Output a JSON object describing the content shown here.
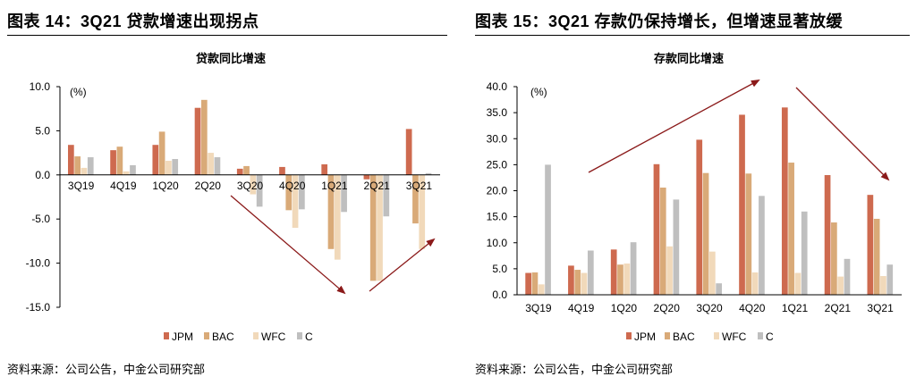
{
  "colors": {
    "JPM": "#CE6A4F",
    "BAC": "#D9AA78",
    "WFC": "#F1D9BA",
    "C": "#BFBFBF",
    "arrow": "#8B1A1A"
  },
  "left": {
    "figure_title": "图表 14：3Q21 贷款增速出现拐点",
    "source": "资料来源：公司公告，中金公司研究部"
  },
  "right": {
    "figure_title": "图表 15：3Q21 存款仍保持增长，但增速显著放缓",
    "source": "资料来源：公司公告，中金公司研究部"
  },
  "chart_data": [
    {
      "type": "bar",
      "title": "贷款同比增速",
      "unit_label": "(%)",
      "categories": [
        "3Q19",
        "4Q19",
        "1Q20",
        "2Q20",
        "3Q20",
        "4Q20",
        "1Q21",
        "2Q21",
        "3Q21"
      ],
      "series": [
        {
          "name": "JPM",
          "values": [
            3.4,
            2.8,
            3.4,
            7.6,
            0.7,
            0.9,
            1.2,
            -0.5,
            5.2
          ]
        },
        {
          "name": "BAC",
          "values": [
            2.1,
            3.2,
            4.9,
            8.5,
            1.0,
            -4.0,
            -8.4,
            -12.0,
            -5.5
          ]
        },
        {
          "name": "WFC",
          "values": [
            0.8,
            0.4,
            1.6,
            2.5,
            -2.2,
            -6.0,
            -9.6,
            -12.0,
            -8.4
          ]
        },
        {
          "name": "C",
          "values": [
            2.0,
            1.1,
            1.8,
            2.0,
            -3.6,
            -3.9,
            -4.2,
            -4.7,
            0.2
          ]
        }
      ],
      "ylim": [
        -15,
        10
      ],
      "yticks": [
        "10.0",
        "5.0",
        "0.0",
        "-5.0",
        "-10.0",
        "-15.0"
      ],
      "legend": "bottom",
      "grid": false
    },
    {
      "type": "bar",
      "title": "存款同比增速",
      "unit_label": "(%)",
      "categories": [
        "3Q19",
        "4Q19",
        "1Q20",
        "2Q20",
        "3Q20",
        "4Q20",
        "1Q21",
        "2Q21",
        "3Q21"
      ],
      "series": [
        {
          "name": "JPM",
          "values": [
            4.2,
            5.6,
            8.7,
            25.1,
            29.8,
            34.6,
            36.0,
            23.0,
            19.2
          ]
        },
        {
          "name": "BAC",
          "values": [
            4.3,
            4.8,
            5.8,
            20.6,
            23.4,
            23.3,
            25.4,
            13.9,
            14.6
          ]
        },
        {
          "name": "WFC",
          "values": [
            2.0,
            4.2,
            6.0,
            9.3,
            8.3,
            4.3,
            4.2,
            3.5,
            3.6
          ]
        },
        {
          "name": "C",
          "values": [
            25.0,
            8.5,
            10.1,
            18.3,
            2.2,
            19.0,
            16.0,
            6.9,
            5.8
          ]
        }
      ],
      "ylim": [
        0,
        40
      ],
      "yticks": [
        "40.0",
        "35.0",
        "30.0",
        "25.0",
        "20.0",
        "15.0",
        "10.0",
        "5.0",
        "0.0"
      ],
      "legend": "bottom",
      "grid": false
    }
  ]
}
